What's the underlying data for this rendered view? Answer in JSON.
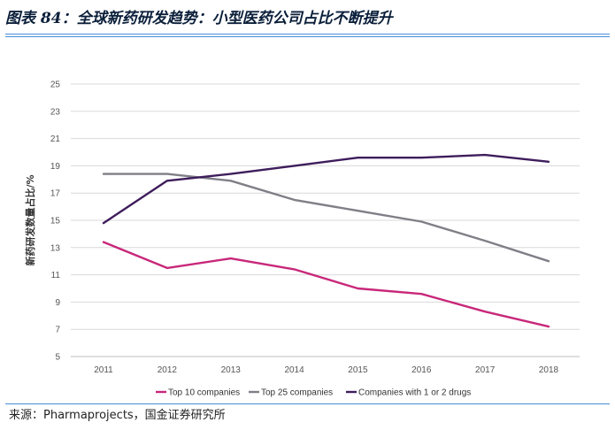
{
  "page": {
    "title": "图表 84：全球新药研发趋势：小型医药公司占比不断提升",
    "source": "来源：Pharmaprojects，国金证券研究所"
  },
  "chart_data": {
    "type": "line",
    "title": "",
    "xlabel": "",
    "ylabel": "新药研发数量占比/%",
    "x": [
      "2011",
      "2012",
      "2013",
      "2014",
      "2015",
      "2016",
      "2017",
      "2018"
    ],
    "ylim": [
      5,
      25
    ],
    "yticks": [
      5,
      7,
      9,
      11,
      13,
      15,
      17,
      19,
      21,
      23,
      25
    ],
    "grid": true,
    "legend_position": "bottom",
    "series": [
      {
        "name": "Top 10 companies",
        "color": "#c8287a",
        "values": [
          13.4,
          11.5,
          12.2,
          11.4,
          10.0,
          9.6,
          8.3,
          7.2
        ]
      },
      {
        "name": "Top 25 companies",
        "color": "#7f7f87",
        "values": [
          18.4,
          18.4,
          17.9,
          16.5,
          15.7,
          14.9,
          13.5,
          12.0
        ]
      },
      {
        "name": "Companies with 1 or 2 drugs",
        "color": "#3e1d5c",
        "values": [
          14.8,
          17.9,
          18.4,
          19.0,
          19.6,
          19.6,
          19.8,
          19.3
        ]
      }
    ]
  }
}
